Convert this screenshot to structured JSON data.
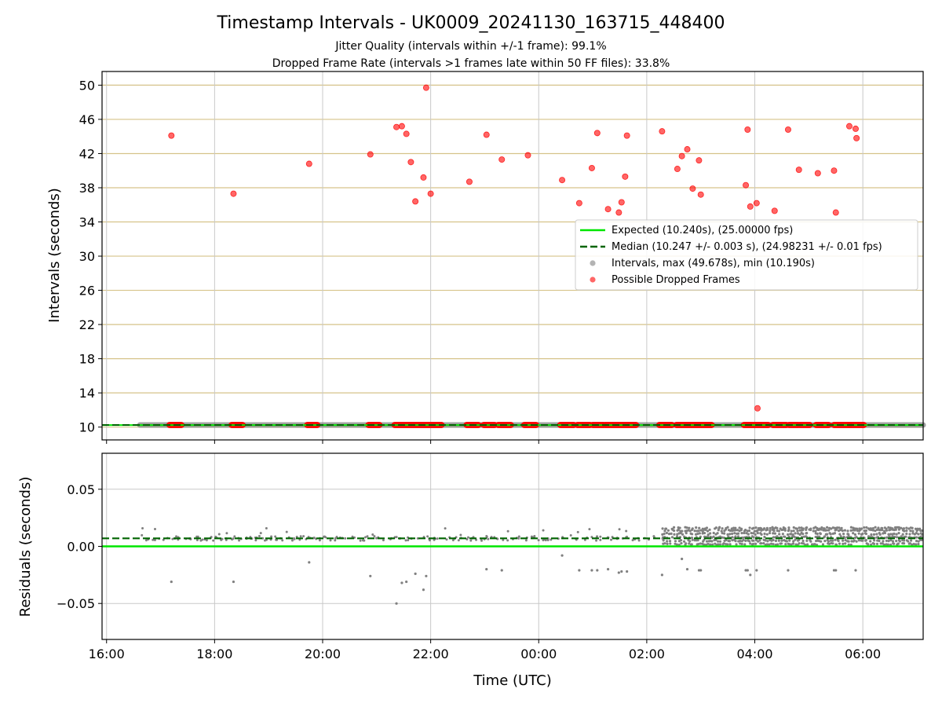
{
  "title": "Timestamp Intervals - UK0009_20241130_163715_448400",
  "subtitle1": "Jitter Quality (intervals within +/-1 frame): 99.1%",
  "subtitle2": "Dropped Frame Rate (intervals >1 frames late within 50 FF files): 33.8%",
  "colors": {
    "expected": "#00e600",
    "median": "#006400",
    "intervals": "#808080",
    "dropped": "#ff0000",
    "hgrid": "#d6c38a",
    "vgrid": "#c8c8c8"
  },
  "chart_data": [
    {
      "type": "scatter",
      "xlabel": "",
      "ylabel": "Intervals (seconds)",
      "ylim": [
        8.5,
        51.6
      ],
      "xlim": [
        "15:55",
        "07:07"
      ],
      "yticks": [
        10,
        14,
        18,
        22,
        26,
        30,
        34,
        38,
        42,
        46,
        50
      ],
      "ytick_labels": [
        "10",
        "14",
        "18",
        "22",
        "26",
        "30",
        "34",
        "38",
        "42",
        "46",
        "50"
      ],
      "grid": "horizontal and vertical",
      "legend": {
        "placement": "center-right",
        "entries": [
          "Expected (10.240s), (25.00000 fps)",
          "Median (10.247 +/- 0.003 s), (24.98231 +/- 0.01 fps)",
          "Intervals, max (49.678s), min (10.190s)",
          "Possible Dropped Frames"
        ]
      },
      "expected_line": 10.24,
      "median_line": 10.247,
      "intervals_x_range": [
        "16:37",
        "07:07"
      ],
      "intervals_y": 10.247,
      "dropped_frames": [
        {
          "x": "17:12",
          "y": 44.1
        },
        {
          "x": "18:21",
          "y": 37.3
        },
        {
          "x": "19:45",
          "y": 40.8
        },
        {
          "x": "20:53",
          "y": 41.9
        },
        {
          "x": "21:22",
          "y": 45.1
        },
        {
          "x": "21:28",
          "y": 45.2
        },
        {
          "x": "21:33",
          "y": 44.3
        },
        {
          "x": "21:38",
          "y": 41.0
        },
        {
          "x": "21:43",
          "y": 36.4
        },
        {
          "x": "21:52",
          "y": 39.2
        },
        {
          "x": "21:55",
          "y": 49.7
        },
        {
          "x": "22:00",
          "y": 37.3
        },
        {
          "x": "22:43",
          "y": 38.7
        },
        {
          "x": "23:02",
          "y": 44.2
        },
        {
          "x": "23:19",
          "y": 41.3
        },
        {
          "x": "23:48",
          "y": 41.8
        },
        {
          "x": "00:26",
          "y": 38.9
        },
        {
          "x": "00:45",
          "y": 36.2
        },
        {
          "x": "00:59",
          "y": 40.3
        },
        {
          "x": "01:05",
          "y": 44.4
        },
        {
          "x": "01:17",
          "y": 35.5
        },
        {
          "x": "01:29",
          "y": 35.1
        },
        {
          "x": "01:32",
          "y": 36.3
        },
        {
          "x": "01:36",
          "y": 39.3
        },
        {
          "x": "01:38",
          "y": 44.1
        },
        {
          "x": "02:17",
          "y": 44.6
        },
        {
          "x": "02:34",
          "y": 40.2
        },
        {
          "x": "02:39",
          "y": 41.7
        },
        {
          "x": "02:45",
          "y": 42.5
        },
        {
          "x": "02:51",
          "y": 37.9
        },
        {
          "x": "02:58",
          "y": 41.2
        },
        {
          "x": "03:00",
          "y": 37.2
        },
        {
          "x": "03:50",
          "y": 38.3
        },
        {
          "x": "03:52",
          "y": 44.8
        },
        {
          "x": "03:55",
          "y": 35.8
        },
        {
          "x": "04:02",
          "y": 36.2
        },
        {
          "x": "04:03",
          "y": 12.2
        },
        {
          "x": "04:22",
          "y": 35.3
        },
        {
          "x": "04:37",
          "y": 44.8
        },
        {
          "x": "04:49",
          "y": 40.1
        },
        {
          "x": "05:10",
          "y": 39.7
        },
        {
          "x": "05:28",
          "y": 40.0
        },
        {
          "x": "05:30",
          "y": 35.1
        },
        {
          "x": "05:45",
          "y": 45.2
        },
        {
          "x": "05:52",
          "y": 44.9
        },
        {
          "x": "05:53",
          "y": 43.8
        }
      ],
      "dropped_baseline_clusters": [
        [
          "17:10",
          "17:23"
        ],
        [
          "18:19",
          "18:31"
        ],
        [
          "19:43",
          "19:54"
        ],
        [
          "20:51",
          "21:03"
        ],
        [
          "21:20",
          "22:12"
        ],
        [
          "22:40",
          "22:53"
        ],
        [
          "22:59",
          "23:11"
        ],
        [
          "23:15",
          "23:29"
        ],
        [
          "23:44",
          "23:57"
        ],
        [
          "00:24",
          "00:39"
        ],
        [
          "00:43",
          "00:57"
        ],
        [
          "01:00",
          "01:12"
        ],
        [
          "01:14",
          "01:48"
        ],
        [
          "02:14",
          "02:28"
        ],
        [
          "02:33",
          "03:12"
        ],
        [
          "03:48",
          "04:15"
        ],
        [
          "04:20",
          "04:35"
        ],
        [
          "04:38",
          "04:48"
        ],
        [
          "04:50",
          "05:01"
        ],
        [
          "05:08",
          "05:22"
        ],
        [
          "05:28",
          "05:45"
        ],
        [
          "05:46",
          "06:01"
        ]
      ]
    },
    {
      "type": "scatter",
      "xlabel": "Time (UTC)",
      "ylabel": "Residuals (seconds)",
      "ylim": [
        -0.0815,
        0.0815
      ],
      "yticks": [
        0.05,
        0.0,
        -0.05
      ],
      "ytick_labels": [
        "0.05",
        "0.00",
        "−0.05"
      ],
      "xticks": [
        "16:00",
        "18:00",
        "20:00",
        "22:00",
        "00:00",
        "02:00",
        "04:00",
        "06:00"
      ],
      "grid": "horizontal and vertical",
      "expected_line": 0.0,
      "median_line": 0.007,
      "residual_outliers": [
        {
          "x": "17:12",
          "y": -0.031
        },
        {
          "x": "18:21",
          "y": -0.031
        },
        {
          "x": "19:45",
          "y": -0.014
        },
        {
          "x": "20:53",
          "y": -0.026
        },
        {
          "x": "21:22",
          "y": -0.05
        },
        {
          "x": "21:28",
          "y": -0.032
        },
        {
          "x": "21:33",
          "y": -0.031
        },
        {
          "x": "21:43",
          "y": -0.024
        },
        {
          "x": "21:52",
          "y": -0.038
        },
        {
          "x": "21:55",
          "y": -0.026
        },
        {
          "x": "23:02",
          "y": -0.02
        },
        {
          "x": "23:19",
          "y": -0.021
        },
        {
          "x": "00:26",
          "y": -0.008
        },
        {
          "x": "00:45",
          "y": -0.021
        },
        {
          "x": "00:59",
          "y": -0.021
        },
        {
          "x": "01:05",
          "y": -0.021
        },
        {
          "x": "01:17",
          "y": -0.02
        },
        {
          "x": "01:29",
          "y": -0.023
        },
        {
          "x": "01:32",
          "y": -0.022
        },
        {
          "x": "01:38",
          "y": -0.022
        },
        {
          "x": "02:17",
          "y": -0.025
        },
        {
          "x": "02:39",
          "y": -0.011
        },
        {
          "x": "02:45",
          "y": -0.02
        },
        {
          "x": "02:58",
          "y": -0.021
        },
        {
          "x": "03:00",
          "y": -0.021
        },
        {
          "x": "03:50",
          "y": -0.021
        },
        {
          "x": "03:52",
          "y": -0.021
        },
        {
          "x": "03:55",
          "y": -0.025
        },
        {
          "x": "04:02",
          "y": -0.021
        },
        {
          "x": "04:37",
          "y": -0.021
        },
        {
          "x": "05:28",
          "y": -0.021
        },
        {
          "x": "05:30",
          "y": -0.021
        },
        {
          "x": "05:52",
          "y": -0.021
        }
      ],
      "residual_band_sparse": {
        "x_range": [
          "16:37",
          "02:17"
        ],
        "y_range": [
          0.002,
          0.018
        ]
      },
      "residual_band_dense": {
        "x_range": [
          "02:17",
          "07:07"
        ],
        "y_range": [
          0.002,
          0.016
        ]
      }
    }
  ]
}
